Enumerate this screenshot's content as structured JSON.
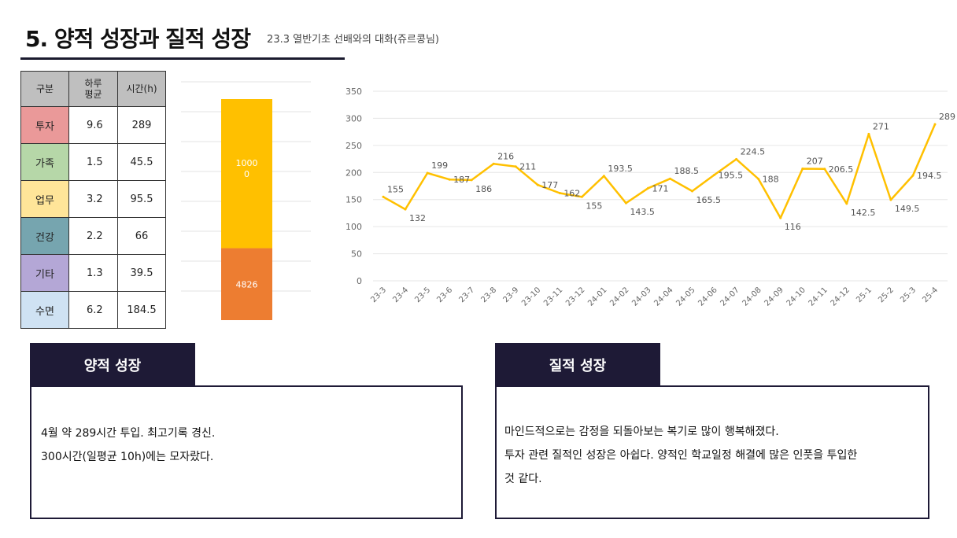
{
  "header": {
    "title": "5. 양적 성장과 질적 성장",
    "subtitle": "23.3 열반기초 선배와의 대화(쥬르콩님)"
  },
  "stats_table": {
    "headers": [
      "구분",
      "하루 평균",
      "시간(h)"
    ],
    "header_avg_lines": [
      "하루",
      "평균"
    ],
    "rows": [
      {
        "category": "투자",
        "avg": "9.6",
        "hours": "289",
        "color": "#ea9999"
      },
      {
        "category": "가족",
        "avg": "1.5",
        "hours": "45.5",
        "color": "#b6d7a8"
      },
      {
        "category": "업무",
        "avg": "3.2",
        "hours": "95.5",
        "color": "#ffe599"
      },
      {
        "category": "건강",
        "avg": "2.2",
        "hours": "66",
        "color": "#76a5af"
      },
      {
        "category": "기타",
        "avg": "1.3",
        "hours": "39.5",
        "color": "#b4a7d6"
      },
      {
        "category": "수면",
        "avg": "6.2",
        "hours": "184.5",
        "color": "#cfe2f3"
      }
    ]
  },
  "chart_data": [
    {
      "type": "bar",
      "stacked": true,
      "series": [
        {
          "name": "",
          "values": [
            4826
          ],
          "label": "4826",
          "color": "#ed7d31"
        },
        {
          "name": "",
          "values": [
            10000
          ],
          "label": "10000",
          "color": "#ffc000"
        }
      ],
      "grid": true
    },
    {
      "type": "line",
      "categories": [
        "23-3",
        "23-4",
        "23-5",
        "23-6",
        "23-7",
        "23-8",
        "23-9",
        "23-10",
        "23-11",
        "23-12",
        "24-01",
        "24-02",
        "24-03",
        "24-04",
        "24-05",
        "24-06",
        "24-07",
        "24-08",
        "24-09",
        "24-10",
        "24-11",
        "24-12",
        "25-1",
        "25-2",
        "25-3",
        "25-4"
      ],
      "values": [
        155,
        132,
        199,
        187,
        186,
        216,
        211,
        177,
        162,
        155,
        193.5,
        143.5,
        171,
        188.5,
        165.5,
        195.5,
        224.5,
        188,
        116,
        207,
        206.5,
        142.5,
        271,
        149.5,
        194.5,
        289
      ],
      "labels": [
        "155",
        "132",
        "199",
        "187",
        "186",
        "216",
        "211",
        "177",
        "162",
        "155",
        "193.5",
        "143.5",
        "171",
        "188.5",
        "165.5",
        "195.5",
        "224.5",
        "188",
        "116",
        "207",
        "206.5",
        "142.5",
        "271",
        "149.5",
        "194.5",
        "289"
      ],
      "ylim": [
        0,
        350
      ],
      "yticks": [
        "0",
        "50",
        "100",
        "150",
        "200",
        "250",
        "300",
        "350"
      ],
      "color": "#ffc000",
      "grid": true
    }
  ],
  "quantitative": {
    "title": "양적 성장",
    "lines": [
      "4월 약 289시간 투입. 최고기록 경신.",
      "300시간(일평균 10h)에는 모자랐다."
    ]
  },
  "qualitative": {
    "title": "질적 성장",
    "lines": [
      "마인드적으로는 감정을 되돌아보는 복기로 많이 행복해졌다.",
      "투자 관련 질적인 성장은 아쉽다. 양적인 학교일정 해결에 많은 인풋을 투입한",
      "것 같다."
    ]
  }
}
